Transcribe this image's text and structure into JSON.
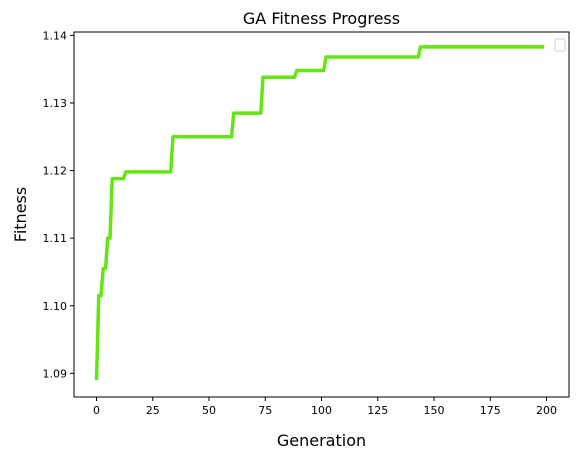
{
  "chart_data": {
    "type": "line",
    "title": "GA Fitness Progress",
    "xlabel": "Generation",
    "ylabel": "Fitness",
    "xlim": [
      -10,
      210
    ],
    "ylim": [
      1.0865,
      1.1405
    ],
    "x_ticks": [
      0,
      25,
      50,
      75,
      100,
      125,
      150,
      175,
      200
    ],
    "x_tick_labels": [
      "0",
      "25",
      "50",
      "75",
      "100",
      "125",
      "150",
      "175",
      "200"
    ],
    "y_ticks": [
      1.09,
      1.1,
      1.11,
      1.12,
      1.13,
      1.14
    ],
    "y_tick_labels": [
      "1.09",
      "1.10",
      "1.11",
      "1.12",
      "1.13",
      "1.14"
    ],
    "grid": false,
    "legend_position": "top-right",
    "series": [
      {
        "color": "#64e614",
        "x": [
          0,
          1,
          2,
          3,
          4,
          5,
          6,
          7,
          8,
          9,
          10,
          11,
          12,
          13,
          33,
          34,
          35,
          36,
          37,
          38,
          39,
          40,
          41,
          42,
          43,
          44,
          45,
          46,
          47,
          48,
          49,
          50,
          51,
          52,
          53,
          54,
          55,
          56,
          57,
          58,
          59,
          60,
          61,
          62,
          63,
          64,
          65,
          66,
          67,
          68,
          69,
          70,
          71,
          72,
          73,
          74,
          88,
          89,
          101,
          102,
          143,
          144,
          199
        ],
        "y": [
          1.089,
          1.1015,
          1.1015,
          1.1055,
          1.1055,
          1.11,
          1.11,
          1.1188,
          1.1188,
          1.1188,
          1.1188,
          1.1188,
          1.1188,
          1.1198,
          1.1198,
          1.125,
          1.125,
          1.125,
          1.125,
          1.125,
          1.125,
          1.125,
          1.125,
          1.125,
          1.125,
          1.125,
          1.125,
          1.125,
          1.125,
          1.125,
          1.125,
          1.125,
          1.125,
          1.125,
          1.125,
          1.125,
          1.125,
          1.125,
          1.125,
          1.125,
          1.125,
          1.125,
          1.1285,
          1.1285,
          1.1285,
          1.1285,
          1.1285,
          1.1285,
          1.1285,
          1.1285,
          1.1285,
          1.1285,
          1.1285,
          1.1285,
          1.1285,
          1.1338,
          1.1338,
          1.1348,
          1.1348,
          1.1368,
          1.1368,
          1.1383,
          1.1383
        ]
      }
    ]
  }
}
